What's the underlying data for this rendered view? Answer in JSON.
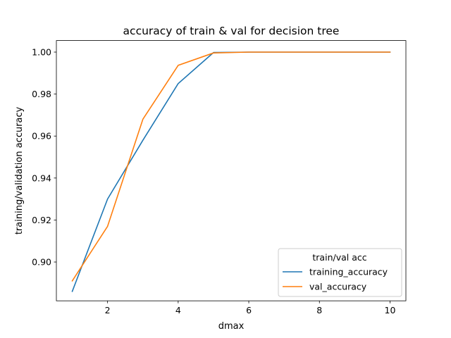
{
  "chart_data": {
    "type": "line",
    "title": "accuracy of train & val for decision tree",
    "xlabel": "dmax",
    "ylabel": "training/validation accuracy",
    "xlim": [
      0.55,
      10.45
    ],
    "ylim": [
      0.8815,
      1.0055
    ],
    "xticks": [
      2,
      4,
      6,
      8,
      10
    ],
    "yticks": [
      0.9,
      0.92,
      0.94,
      0.96,
      0.98,
      1.0
    ],
    "ytick_labels": [
      "0.90",
      "0.92",
      "0.94",
      "0.96",
      "0.98",
      "1.00"
    ],
    "grid": false,
    "legend": {
      "title": "train/val acc",
      "placement": "lower-right"
    },
    "x": [
      1,
      2,
      3,
      4,
      5,
      6,
      7,
      8,
      9,
      10
    ],
    "series": [
      {
        "name": "training_accuracy",
        "color": "#1f77b4",
        "values": [
          0.886,
          0.93,
          0.958,
          0.985,
          0.9998,
          1.0,
          1.0,
          1.0,
          1.0,
          1.0
        ]
      },
      {
        "name": "val_accuracy",
        "color": "#ff7f0e",
        "values": [
          0.891,
          0.917,
          0.968,
          0.9937,
          0.9996,
          1.0,
          1.0,
          1.0,
          1.0,
          1.0
        ]
      }
    ]
  }
}
